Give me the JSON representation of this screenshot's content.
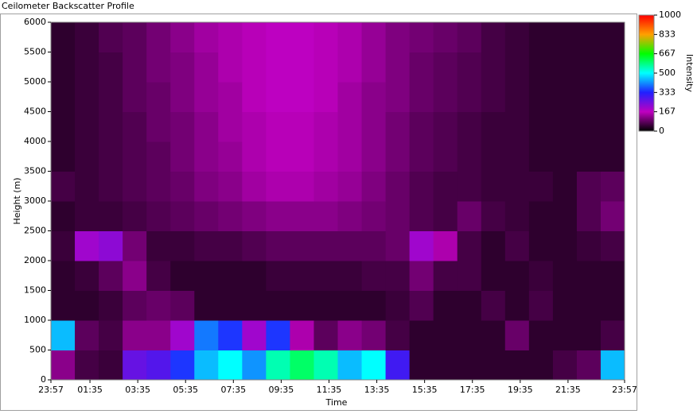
{
  "chart_data": {
    "type": "heatmap",
    "title": "Ceilometer Backscatter Profile",
    "x_label": "Time",
    "y_label": "Height (m)",
    "colorbar_label": "Intensity",
    "xlim": [
      0,
      24
    ],
    "xticks": [
      {
        "value": 0,
        "label": "23:57"
      },
      {
        "value": 1.633,
        "label": "01:35"
      },
      {
        "value": 3.633,
        "label": "03:35"
      },
      {
        "value": 5.633,
        "label": "05:35"
      },
      {
        "value": 7.633,
        "label": "07:35"
      },
      {
        "value": 9.633,
        "label": "09:35"
      },
      {
        "value": 11.633,
        "label": "11:35"
      },
      {
        "value": 13.633,
        "label": "13:35"
      },
      {
        "value": 15.633,
        "label": "15:35"
      },
      {
        "value": 17.633,
        "label": "17:35"
      },
      {
        "value": 19.633,
        "label": "19:35"
      },
      {
        "value": 21.633,
        "label": "21:35"
      },
      {
        "value": 24,
        "label": "23:57"
      }
    ],
    "ylim": [
      0,
      6000
    ],
    "yticks": [
      0,
      500,
      1000,
      1500,
      2000,
      2500,
      3000,
      3500,
      4000,
      4500,
      5000,
      5500,
      6000
    ],
    "zlim": [
      0,
      1000
    ],
    "zticks": [
      0,
      167,
      333,
      500,
      667,
      833,
      1000
    ],
    "colormap": [
      "#000000",
      "#c000c0",
      "#2020ff",
      "#00ffff",
      "#00ff00",
      "#ffa000",
      "#ff0000"
    ],
    "x": [
      0.5,
      1.5,
      2.5,
      3.5,
      4.5,
      5.5,
      6.5,
      7.5,
      8.5,
      9.5,
      10.5,
      11.5,
      12.5,
      13.5,
      14.5,
      15.5,
      16.5,
      17.5,
      18.5,
      19.5,
      20.5,
      21.5,
      22.5,
      23.5
    ],
    "y": [
      250,
      750,
      1250,
      1750,
      2250,
      2750,
      3250,
      3750,
      4250,
      4750,
      5250,
      5750
    ],
    "z": [
      [
        120,
        60,
        50,
        260,
        280,
        350,
        450,
        500,
        420,
        550,
        600,
        550,
        450,
        500,
        300,
        40,
        40,
        40,
        40,
        40,
        40,
        60,
        80,
        450
      ],
      [
        450,
        80,
        60,
        120,
        120,
        200,
        400,
        350,
        200,
        350,
        150,
        80,
        120,
        100,
        60,
        40,
        40,
        40,
        40,
        90,
        40,
        40,
        40,
        60
      ],
      [
        40,
        40,
        50,
        80,
        90,
        80,
        40,
        40,
        40,
        40,
        40,
        40,
        40,
        40,
        50,
        70,
        40,
        40,
        60,
        40,
        60,
        40,
        40,
        40
      ],
      [
        40,
        50,
        80,
        120,
        60,
        40,
        40,
        40,
        40,
        50,
        50,
        50,
        50,
        60,
        60,
        100,
        60,
        60,
        40,
        40,
        50,
        40,
        40,
        40
      ],
      [
        50,
        200,
        220,
        100,
        50,
        50,
        60,
        60,
        70,
        80,
        80,
        80,
        80,
        80,
        90,
        200,
        150,
        60,
        40,
        60,
        40,
        40,
        50,
        60
      ],
      [
        40,
        50,
        50,
        60,
        70,
        80,
        90,
        100,
        110,
        120,
        120,
        120,
        110,
        100,
        90,
        70,
        60,
        90,
        60,
        50,
        40,
        40,
        70,
        100
      ],
      [
        60,
        50,
        60,
        70,
        80,
        90,
        110,
        120,
        140,
        150,
        150,
        140,
        130,
        110,
        90,
        70,
        60,
        60,
        50,
        50,
        50,
        40,
        70,
        80
      ],
      [
        40,
        50,
        60,
        70,
        80,
        100,
        120,
        130,
        150,
        160,
        160,
        150,
        140,
        120,
        100,
        80,
        70,
        60,
        50,
        50,
        40,
        40,
        40,
        40
      ],
      [
        40,
        50,
        60,
        70,
        90,
        100,
        120,
        140,
        150,
        160,
        160,
        150,
        140,
        120,
        100,
        80,
        70,
        60,
        50,
        50,
        40,
        40,
        40,
        40
      ],
      [
        40,
        50,
        60,
        80,
        90,
        110,
        130,
        140,
        160,
        170,
        170,
        160,
        140,
        120,
        110,
        90,
        80,
        70,
        60,
        50,
        40,
        40,
        40,
        40
      ],
      [
        40,
        50,
        60,
        80,
        100,
        110,
        130,
        150,
        160,
        170,
        170,
        160,
        150,
        130,
        110,
        90,
        80,
        70,
        60,
        50,
        40,
        40,
        40,
        40
      ],
      [
        40,
        50,
        70,
        80,
        100,
        120,
        140,
        150,
        160,
        170,
        170,
        160,
        150,
        130,
        110,
        100,
        90,
        80,
        60,
        50,
        40,
        40,
        40,
        40
      ]
    ]
  }
}
